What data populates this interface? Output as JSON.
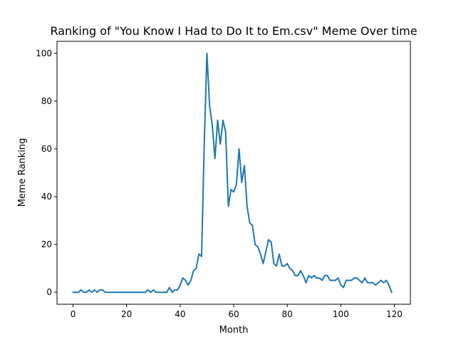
{
  "chart_data": {
    "type": "line",
    "title": "Ranking of \"You Know I Had to Do It to Em.csv\" Meme Over time",
    "xlabel": "Month",
    "ylabel": "Meme Ranking",
    "xlim": [
      -6,
      126
    ],
    "ylim": [
      -5,
      105
    ],
    "xticks": [
      0,
      20,
      40,
      60,
      80,
      100,
      120
    ],
    "yticks": [
      0,
      20,
      40,
      60,
      80,
      100
    ],
    "grid": false,
    "legend": "none",
    "series": [
      {
        "color": "#1f77b4",
        "x": [
          0,
          1,
          2,
          3,
          4,
          5,
          6,
          7,
          8,
          9,
          10,
          11,
          12,
          13,
          14,
          15,
          16,
          17,
          18,
          19,
          20,
          21,
          22,
          23,
          24,
          25,
          26,
          27,
          28,
          29,
          30,
          31,
          32,
          33,
          34,
          35,
          36,
          37,
          38,
          39,
          40,
          41,
          42,
          43,
          44,
          45,
          46,
          47,
          48,
          49,
          50,
          51,
          52,
          53,
          54,
          55,
          56,
          57,
          58,
          59,
          60,
          61,
          62,
          63,
          64,
          65,
          66,
          67,
          68,
          69,
          70,
          71,
          72,
          73,
          74,
          75,
          76,
          77,
          78,
          79,
          80,
          81,
          82,
          83,
          84,
          85,
          86,
          87,
          88,
          89,
          90,
          91,
          92,
          93,
          94,
          95,
          96,
          97,
          98,
          99,
          100,
          101,
          102,
          103,
          104,
          105,
          106,
          107,
          108,
          109,
          110,
          111,
          112,
          113,
          114,
          115,
          116,
          117,
          118,
          119
        ],
        "values": [
          0,
          0,
          0,
          1,
          0,
          0,
          1,
          0,
          1,
          0,
          1,
          1,
          0,
          0,
          0,
          0,
          0,
          0,
          0,
          0,
          0,
          0,
          0,
          0,
          0,
          0,
          0,
          0,
          1,
          0,
          1,
          0,
          0,
          0,
          0,
          0,
          2,
          0,
          1,
          1,
          3,
          6,
          5,
          3,
          5,
          9,
          10,
          16,
          15,
          62,
          100,
          78,
          70,
          56,
          72,
          62,
          72,
          67,
          36,
          43,
          42,
          45,
          60,
          46,
          53,
          36,
          29,
          28,
          20,
          19,
          16,
          12,
          17,
          22,
          21,
          12,
          11,
          16,
          11,
          11,
          12,
          10,
          9,
          7,
          7,
          9,
          7,
          4,
          7,
          6,
          7,
          6,
          6,
          5,
          7,
          7,
          5,
          5,
          5,
          6,
          3,
          2,
          5,
          5,
          5,
          6,
          6,
          5,
          4,
          6,
          4,
          4,
          4,
          3,
          4,
          5,
          4,
          5,
          3,
          0
        ]
      }
    ]
  }
}
